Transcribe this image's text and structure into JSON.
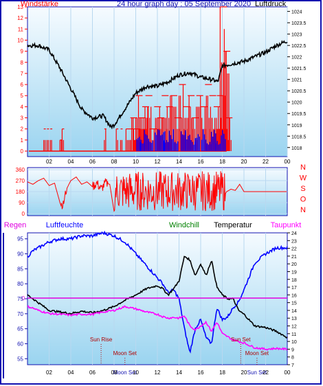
{
  "header": {
    "title": "24 hour graph day : 05 September 2020",
    "left_label": "Windstärke",
    "right_label": "Luftdruck"
  },
  "colors": {
    "frame": "#1010b0",
    "plot_bg_top": "#f6fbff",
    "plot_bg_bottom": "#9ad4f0",
    "wind_red": "#ff0000",
    "wind_blue": "#0000ff",
    "pressure": "#000000",
    "humidity": "#0000ff",
    "temperature": "#000000",
    "dewpoint": "#ff00ff",
    "windchill": "#008000",
    "rain_line": "#e000e0",
    "sun_moon": "#b00000"
  },
  "chart_data": [
    {
      "type": "bar",
      "name": "wind_pressure",
      "x_ticks": [
        "02",
        "04",
        "06",
        "08",
        "10",
        "12",
        "14",
        "16",
        "18",
        "20",
        "22",
        "00"
      ],
      "xlim": [
        0,
        24
      ],
      "y_left_ticks": [
        "0",
        "1",
        "2",
        "3",
        "4",
        "5",
        "6",
        "7",
        "8",
        "9",
        "10",
        "11",
        "12",
        "13"
      ],
      "ylim_left": [
        0,
        13
      ],
      "y_right_ticks": [
        "1018",
        "1018.5",
        "1019",
        "1019.5",
        "1020",
        "1020.5",
        "1021",
        "1021.5",
        "1022",
        "1022.5",
        "1023",
        "1023.5",
        "1024"
      ],
      "ylim_right": [
        1017.6,
        1024.2
      ],
      "series": [
        {
          "name": "Windstärke",
          "kind": "bars-red",
          "x": [
            1.5,
            1.8,
            2.1,
            3.0,
            3.2,
            7.1,
            8.2,
            8.6,
            9.1,
            9.5,
            9.8,
            10.0,
            10.3,
            10.6,
            10.9,
            11.3,
            11.7,
            12.0,
            12.4,
            12.8,
            13.2,
            13.6,
            14.0,
            14.4,
            14.8,
            15.2,
            15.6,
            16.0,
            16.4,
            16.8,
            17.2,
            17.5,
            17.8,
            18.1,
            18.3
          ],
          "values": [
            2,
            2,
            2,
            1,
            2,
            2,
            2,
            2,
            2,
            3,
            2,
            5,
            3,
            4,
            5,
            2,
            4,
            3,
            5,
            4,
            5,
            3,
            6,
            4,
            5,
            3,
            5,
            4,
            6,
            5,
            4,
            5,
            13,
            9,
            3
          ]
        },
        {
          "name": "Böen",
          "kind": "bars-blue",
          "x": [
            10.1,
            10.4,
            10.8,
            11.2,
            11.8,
            12.3,
            12.6,
            13.1,
            13.5,
            14.2,
            14.6,
            15.1,
            15.5,
            16.1,
            16.6,
            17.0,
            17.4,
            17.9
          ],
          "values": [
            2,
            1,
            2,
            1,
            2,
            2,
            1,
            2,
            1,
            2,
            2,
            1,
            2,
            2,
            1,
            2,
            1,
            2
          ]
        },
        {
          "name": "Luftdruck",
          "kind": "line",
          "x": [
            0,
            1,
            2,
            3,
            4,
            5,
            6,
            7,
            7.7,
            8,
            9,
            10,
            11,
            12,
            13,
            14,
            15,
            16,
            17,
            17.6,
            18,
            19,
            20,
            21,
            22,
            23,
            24
          ],
          "values": [
            1022.5,
            1022.5,
            1022.3,
            1021.5,
            1020.6,
            1019.7,
            1019.3,
            1019.4,
            1018.9,
            1019.0,
            1019.7,
            1020.4,
            1020.7,
            1020.7,
            1020.9,
            1021.2,
            1021.3,
            1021.1,
            1021.0,
            1020.9,
            1021.6,
            1021.7,
            1021.8,
            1022.0,
            1022.2,
            1022.5,
            1022.7
          ]
        }
      ]
    },
    {
      "type": "scatter",
      "name": "wind_direction",
      "y_ticks": [
        "0",
        "90",
        "180",
        "270",
        "360"
      ],
      "ylim": [
        0,
        360
      ],
      "right_labels": [
        "N",
        "W",
        "S",
        "O",
        "N"
      ],
      "series": [
        {
          "name": "Windrichtung",
          "x": [
            0,
            0.5,
            1.0,
            1.5,
            2.0,
            2.5,
            3.0,
            3.3,
            3.6,
            4.0,
            4.5,
            5.0,
            5.5,
            6.0,
            6.4,
            6.8,
            7.2,
            7.6,
            8.0,
            9.0,
            10.0,
            11.0,
            12.0,
            13.0,
            14.0,
            15.0,
            16.0,
            17.0,
            18.0,
            18.4,
            18.8,
            19.2,
            19.6,
            20.0,
            21.0,
            22.0,
            23.0,
            24.0
          ],
          "values": [
            260,
            240,
            270,
            290,
            230,
            250,
            90,
            70,
            200,
            270,
            300,
            240,
            260,
            220,
            250,
            200,
            250,
            240,
            20,
            200,
            120,
            260,
            200,
            150,
            270,
            220,
            180,
            200,
            120,
            180,
            200,
            190,
            240,
            180,
            180,
            180,
            180,
            180
          ]
        }
      ]
    },
    {
      "type": "line",
      "name": "humidity_temp",
      "x_ticks": [
        "02",
        "04",
        "06",
        "08",
        "10",
        "12",
        "14",
        "16",
        "18",
        "20",
        "22",
        "00"
      ],
      "xlim": [
        0,
        24
      ],
      "y_left_ticks": [
        "55",
        "60",
        "65",
        "70",
        "75",
        "80",
        "85",
        "90",
        "95"
      ],
      "ylim_left": [
        53,
        97
      ],
      "y_right_ticks": [
        "7",
        "8",
        "9",
        "10",
        "11",
        "12",
        "13",
        "14",
        "15",
        "16",
        "17",
        "18",
        "19",
        "20",
        "21",
        "22",
        "23",
        "24"
      ],
      "ylim_right": [
        7,
        24
      ],
      "top_labels": [
        "Regen",
        "Luftfeuchte",
        "Windchill",
        "Temperatur",
        "Taupunkt"
      ],
      "rain_label": "0",
      "rain_value": 0,
      "annotations": [
        {
          "text": "Sun Rise",
          "x": 6.8
        },
        {
          "text": "Moon Set",
          "x": 9.0
        },
        {
          "text": "Sun Set",
          "x": 19.7
        },
        {
          "text": "Moon Set",
          "x": 21.2
        }
      ],
      "bottom_labels": [
        "Moon Set",
        "Sun Set"
      ],
      "series": [
        {
          "name": "Luftfeuchte",
          "axis": "left",
          "x": [
            0,
            0.5,
            1,
            2,
            3,
            4,
            5,
            6,
            7,
            8,
            9,
            10,
            11,
            12,
            12.5,
            13,
            13.5,
            14,
            14.5,
            15,
            15.5,
            16,
            16.5,
            17,
            17.5,
            18,
            18.5,
            19,
            19.5,
            20,
            21,
            22,
            23,
            24
          ],
          "values": [
            89,
            91,
            92,
            94,
            95,
            95,
            96,
            96,
            97,
            96,
            94,
            90,
            86,
            82,
            80,
            77,
            78,
            75,
            65,
            57,
            65,
            68,
            62,
            60,
            72,
            68,
            69,
            72,
            74,
            78,
            87,
            90,
            92,
            92
          ]
        },
        {
          "name": "Temperatur",
          "axis": "right",
          "x": [
            0,
            0.5,
            1,
            2,
            3,
            4,
            5,
            6,
            7,
            8,
            9,
            10,
            11,
            12,
            12.5,
            13,
            13.5,
            14,
            14.5,
            15,
            15.5,
            16,
            16.5,
            17,
            17.5,
            18,
            18.5,
            19,
            19.5,
            20,
            21,
            22,
            23,
            24
          ],
          "values": [
            16.0,
            15.5,
            15.0,
            14.0,
            13.8,
            13.6,
            13.9,
            13.7,
            14.0,
            14.5,
            15.3,
            16.0,
            16.8,
            17.2,
            16.8,
            16.0,
            16.8,
            17.8,
            21.0,
            20.5,
            18.5,
            20.0,
            18.5,
            20.5,
            17.0,
            16.0,
            15.5,
            15.5,
            14.0,
            13.5,
            12.0,
            11.8,
            11.3,
            10.5
          ]
        },
        {
          "name": "Taupunkt",
          "axis": "right",
          "x": [
            0,
            0.5,
            1,
            2,
            3,
            4,
            5,
            6,
            7,
            8,
            9,
            10,
            11,
            12,
            12.5,
            13,
            13.5,
            14,
            14.5,
            15,
            15.5,
            16,
            16.5,
            17,
            17.5,
            18,
            18.5,
            19,
            19.5,
            20,
            21,
            22,
            23,
            24
          ],
          "values": [
            14.5,
            14.3,
            14.0,
            13.6,
            13.5,
            13.4,
            13.5,
            13.5,
            13.8,
            14.0,
            14.5,
            14.2,
            13.8,
            13.5,
            13.2,
            13.0,
            13.1,
            13.0,
            13.3,
            12.0,
            11.5,
            12.0,
            12.5,
            11.3,
            12.5,
            11.0,
            10.6,
            10.2,
            10.0,
            9.8,
            9.2,
            9.0,
            9.1,
            9.0
          ]
        }
      ]
    }
  ]
}
